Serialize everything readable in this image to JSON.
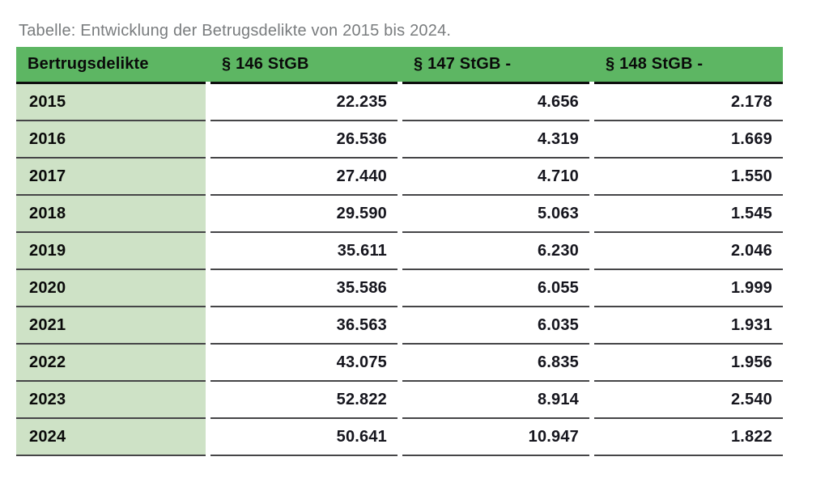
{
  "page": {
    "title": "Tabelle: Entwicklung der Betrugsdelikte von 2015 bis 2024."
  },
  "table": {
    "headers": [
      "Bertrugsdelikte",
      "§ 146 StGB",
      "§ 147 StGB -",
      "§ 148 StGB -"
    ],
    "rows": [
      {
        "year": "2015",
        "cells": [
          "22.235",
          "4.656",
          "2.178"
        ]
      },
      {
        "year": "2016",
        "cells": [
          "26.536",
          "4.319",
          "1.669"
        ]
      },
      {
        "year": "2017",
        "cells": [
          "27.440",
          "4.710",
          "1.550"
        ]
      },
      {
        "year": "2018",
        "cells": [
          "29.590",
          "5.063",
          "1.545"
        ]
      },
      {
        "year": "2019",
        "cells": [
          "35.611",
          "6.230",
          "2.046"
        ]
      },
      {
        "year": "2020",
        "cells": [
          "35.586",
          "6.055",
          "1.999"
        ]
      },
      {
        "year": "2021",
        "cells": [
          "36.563",
          "6.035",
          "1.931"
        ]
      },
      {
        "year": "2022",
        "cells": [
          "43.075",
          "6.835",
          "1.956"
        ]
      },
      {
        "year": "2023",
        "cells": [
          "52.822",
          "8.914",
          "2.540"
        ]
      },
      {
        "year": "2024",
        "cells": [
          "50.641",
          "10.947",
          "1.822"
        ]
      }
    ]
  },
  "chart_data": {
    "type": "table",
    "title": "Tabelle: Entwicklung der Betrugsdelikte von 2015 bis 2024.",
    "columns": [
      "Bertrugsdelikte",
      "§ 146 StGB",
      "§ 147 StGB -",
      "§ 148 StGB -"
    ],
    "categories": [
      "2015",
      "2016",
      "2017",
      "2018",
      "2019",
      "2020",
      "2021",
      "2022",
      "2023",
      "2024"
    ],
    "series": [
      {
        "name": "§ 146 StGB",
        "values": [
          22235,
          26536,
          27440,
          29590,
          35611,
          35586,
          36563,
          43075,
          52822,
          50641
        ]
      },
      {
        "name": "§ 147 StGB -",
        "values": [
          4656,
          4319,
          4710,
          5063,
          6230,
          6055,
          6035,
          6835,
          8914,
          10947
        ]
      },
      {
        "name": "§ 148 StGB -",
        "values": [
          2178,
          1669,
          1550,
          1545,
          2046,
          1999,
          1931,
          1956,
          2540,
          1822
        ]
      }
    ]
  },
  "colors": {
    "header_green": "#5db663",
    "row_green": "#cee2c6",
    "title_gray": "#797c7e",
    "row_border": "#454547",
    "header_border": "#0e0e0e",
    "num_color": "#15151d",
    "label_color": "#0a0a0a"
  }
}
